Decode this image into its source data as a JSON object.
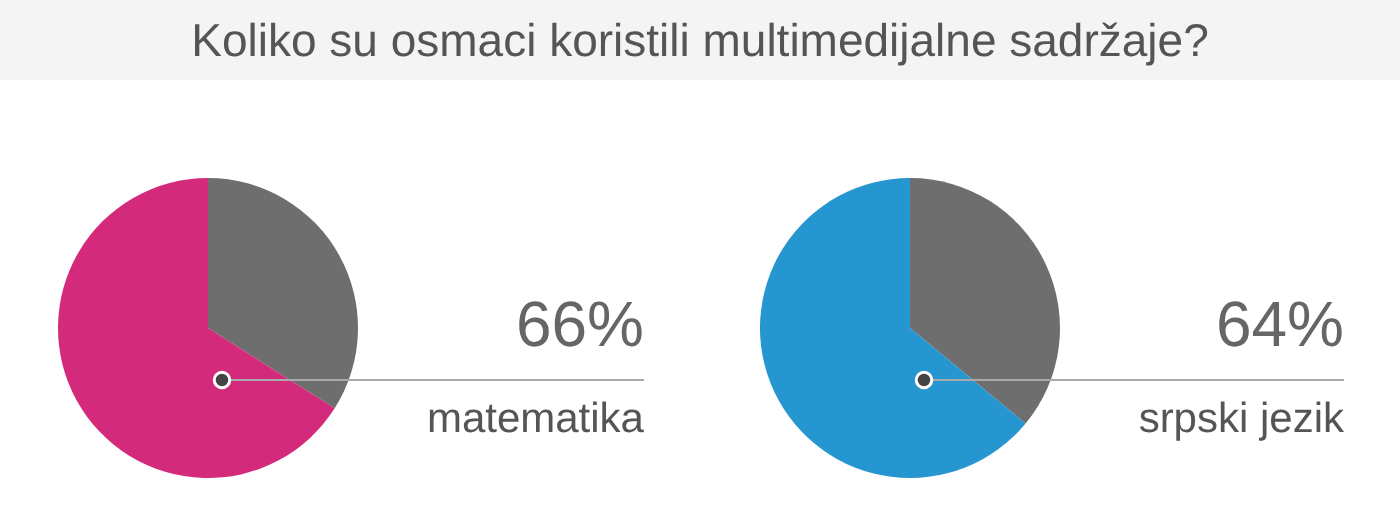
{
  "chart_data": [
    {
      "type": "pie",
      "title": "matematika",
      "annotations": [
        "Koliko su osmaci koristili multimedijalne sadržaje?"
      ],
      "categories": [
        null,
        null
      ],
      "values": [
        34,
        66
      ],
      "colors": [
        "#6e6e6e",
        "#d42a7c"
      ],
      "value_labels": [
        null,
        "66%"
      ]
    },
    {
      "type": "pie",
      "title": "srpski jezik",
      "categories": [
        null,
        null
      ],
      "values": [
        36,
        64
      ],
      "colors": [
        "#6e6e6e",
        "#2596cf"
      ],
      "value_labels": [
        null,
        "64%"
      ]
    }
  ]
}
